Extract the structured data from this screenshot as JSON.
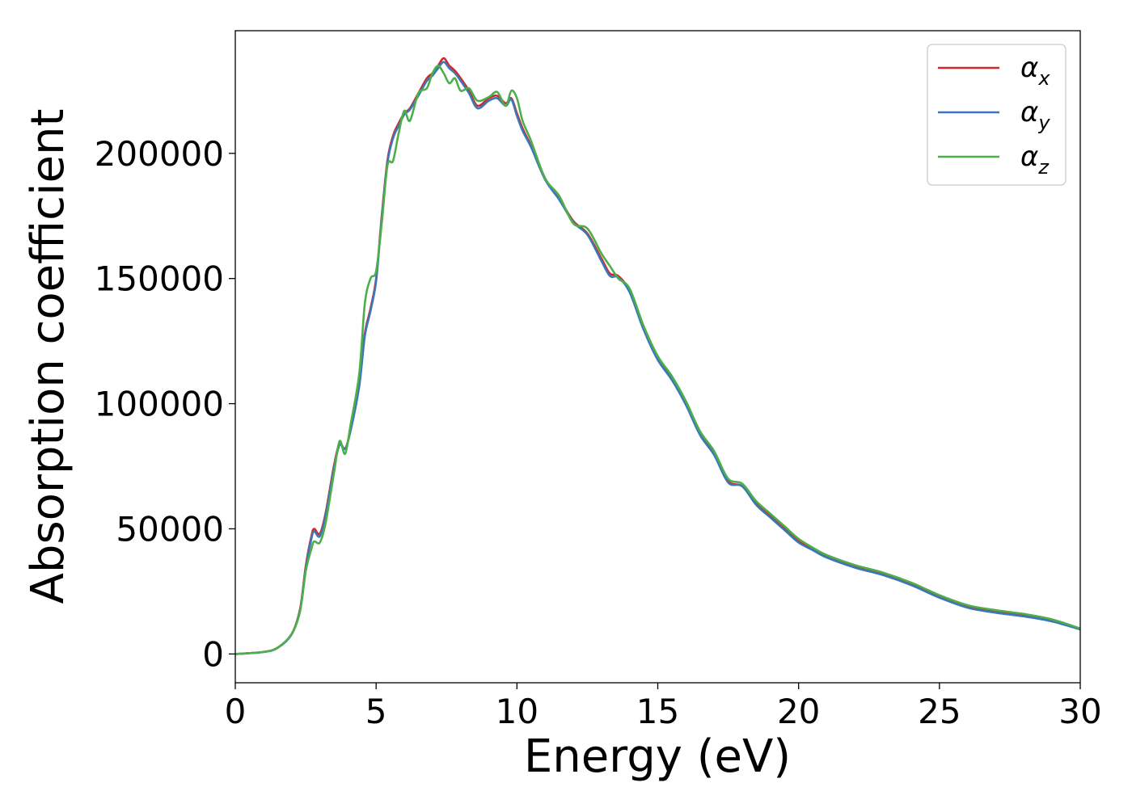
{
  "chart_data": {
    "type": "line",
    "title": "",
    "xlabel": "Energy (eV)",
    "ylabel": "Absorption coefficient",
    "xlim": [
      0,
      30
    ],
    "ylim": [
      -11500,
      249000
    ],
    "xticks": [
      0,
      5,
      10,
      15,
      20,
      25,
      30
    ],
    "yticks": [
      0,
      50000,
      100000,
      150000,
      200000
    ],
    "grid": false,
    "legend_position": "top-right",
    "series": [
      {
        "name": "α",
        "subscript": "x",
        "color": "#d62728",
        "x": [
          0,
          1,
          1.5,
          2,
          2.3,
          2.5,
          2.7,
          2.8,
          3.0,
          3.2,
          3.5,
          3.7,
          3.9,
          4.1,
          4.4,
          4.6,
          4.8,
          5.0,
          5.2,
          5.4,
          5.6,
          5.8,
          6.0,
          6.2,
          6.5,
          6.8,
          7.0,
          7.2,
          7.4,
          7.6,
          7.8,
          8.0,
          8.3,
          8.6,
          9.0,
          9.3,
          9.6,
          9.8,
          10.0,
          10.2,
          10.5,
          11.0,
          11.5,
          12.0,
          12.5,
          13.0,
          13.3,
          13.6,
          14.0,
          14.5,
          15.0,
          15.5,
          16.0,
          16.5,
          17.0,
          17.5,
          18.0,
          18.5,
          19.0,
          19.5,
          20.0,
          20.5,
          21.0,
          22.0,
          23.0,
          24.0,
          25.0,
          26.0,
          27.0,
          28.0,
          29.0,
          30.0
        ],
        "y": [
          0,
          800,
          2500,
          8000,
          18000,
          35000,
          47000,
          50000,
          48000,
          56000,
          75000,
          84000,
          82000,
          90000,
          108000,
          128000,
          138000,
          150000,
          175000,
          197000,
          207000,
          212000,
          216000,
          218000,
          224000,
          230000,
          232000,
          235000,
          238000,
          235000,
          233000,
          230000,
          225000,
          219000,
          222000,
          223000,
          220000,
          222000,
          216000,
          210000,
          203000,
          190000,
          182000,
          173000,
          168000,
          158000,
          152000,
          151000,
          145000,
          130000,
          118000,
          110000,
          100000,
          88000,
          80000,
          69000,
          67000,
          60000,
          55000,
          50000,
          45000,
          42000,
          39000,
          35000,
          32000,
          28000,
          23000,
          19000,
          17000,
          15500,
          13500,
          10000
        ]
      },
      {
        "name": "α",
        "subscript": "y",
        "color": "#3a78b8",
        "x": [
          0,
          1,
          1.5,
          2,
          2.3,
          2.5,
          2.7,
          2.8,
          3.0,
          3.2,
          3.5,
          3.7,
          3.9,
          4.1,
          4.4,
          4.6,
          4.8,
          5.0,
          5.2,
          5.4,
          5.6,
          5.8,
          6.0,
          6.2,
          6.5,
          6.8,
          7.0,
          7.2,
          7.4,
          7.6,
          7.8,
          8.0,
          8.3,
          8.6,
          9.0,
          9.3,
          9.6,
          9.8,
          10.0,
          10.2,
          10.5,
          11.0,
          11.5,
          12.0,
          12.5,
          13.0,
          13.3,
          13.6,
          14.0,
          14.5,
          15.0,
          15.5,
          16.0,
          16.5,
          17.0,
          17.5,
          18.0,
          18.5,
          19.0,
          19.5,
          20.0,
          20.5,
          21.0,
          22.0,
          23.0,
          24.0,
          25.0,
          26.0,
          27.0,
          28.0,
          29.0,
          30.0
        ],
        "y": [
          0,
          800,
          2400,
          7800,
          17500,
          34000,
          46000,
          49000,
          47000,
          55000,
          74000,
          83500,
          82000,
          89500,
          107000,
          127000,
          137000,
          149000,
          174000,
          196000,
          206000,
          211000,
          215500,
          217500,
          223000,
          229000,
          231000,
          234000,
          236500,
          234000,
          232000,
          229000,
          224000,
          218000,
          221000,
          222000,
          219000,
          221500,
          215000,
          209000,
          202500,
          189500,
          181500,
          172500,
          167500,
          157000,
          151000,
          150500,
          144500,
          129500,
          117500,
          109500,
          99500,
          87500,
          79500,
          68500,
          67000,
          59500,
          54500,
          49500,
          44500,
          41500,
          38500,
          34500,
          31500,
          27500,
          22500,
          18500,
          16500,
          15000,
          13000,
          9800
        ]
      },
      {
        "name": "α",
        "subscript": "z",
        "color": "#4daf4a",
        "x": [
          0,
          1,
          1.5,
          2,
          2.3,
          2.5,
          2.7,
          2.8,
          3.0,
          3.2,
          3.5,
          3.7,
          3.9,
          4.1,
          4.4,
          4.6,
          4.8,
          5.0,
          5.2,
          5.4,
          5.6,
          5.8,
          6.0,
          6.2,
          6.5,
          6.8,
          7.0,
          7.2,
          7.4,
          7.6,
          7.8,
          8.0,
          8.3,
          8.6,
          9.0,
          9.3,
          9.6,
          9.8,
          10.0,
          10.2,
          10.5,
          11.0,
          11.5,
          12.0,
          12.5,
          13.0,
          13.3,
          13.6,
          14.0,
          14.5,
          15.0,
          15.5,
          16.0,
          16.5,
          17.0,
          17.5,
          18.0,
          18.5,
          19.0,
          19.5,
          20.0,
          20.5,
          21.0,
          22.0,
          23.0,
          24.0,
          25.0,
          26.0,
          27.0,
          28.0,
          29.0,
          30.0
        ],
        "y": [
          0,
          800,
          2500,
          8000,
          17000,
          33000,
          42000,
          45000,
          44500,
          52000,
          72000,
          85000,
          80000,
          92000,
          112000,
          140000,
          150000,
          153000,
          172000,
          195000,
          197000,
          208000,
          217000,
          213000,
          224000,
          226000,
          232000,
          235000,
          232000,
          228000,
          230000,
          225000,
          226000,
          221000,
          222500,
          224500,
          219000,
          225000,
          222000,
          213000,
          205000,
          190000,
          183000,
          172000,
          170000,
          160000,
          155000,
          150000,
          146000,
          131000,
          119000,
          111000,
          101000,
          89000,
          81000,
          70000,
          68000,
          61000,
          56000,
          51000,
          46000,
          42500,
          39500,
          35500,
          32500,
          28500,
          23500,
          19500,
          17500,
          16000,
          13800,
          10200
        ]
      }
    ]
  }
}
